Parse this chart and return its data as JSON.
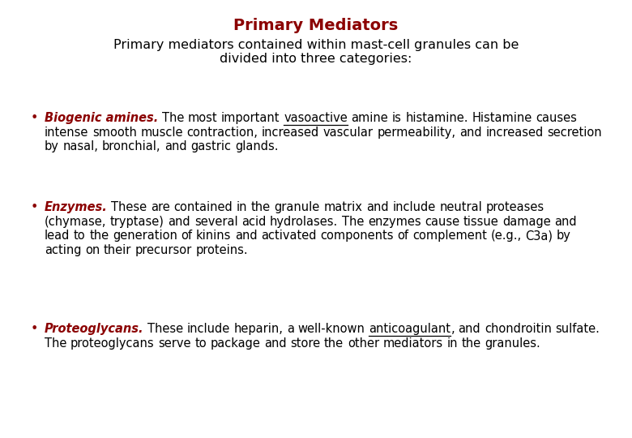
{
  "bg_color": "#ffffff",
  "title": "Primary Mediators",
  "title_color": "#8B0000",
  "title_fontsize": 14,
  "subtitle_line1": "Primary mediators contained within mast-cell granules can be",
  "subtitle_line2": "divided into three categories:",
  "subtitle_color": "#000000",
  "subtitle_fontsize": 11.5,
  "red_color": "#8B0000",
  "black_color": "#000000",
  "body_fontsize": 10.5,
  "figwidth": 7.8,
  "figheight": 5.4,
  "dpi": 100,
  "bullet1_label": "Biogenic amines.",
  "bullet1_pre_ul": " The most important ",
  "bullet1_ul": "vasoactive",
  "bullet1_post": " amine is histamine. Histamine causes intense smooth muscle contraction, increased vascular permeability, and increased secretion by nasal, bronchial, and gastric glands.",
  "bullet2_label": "Enzymes.",
  "bullet2_body": " These are contained in the granule matrix and include neutral proteases (chymase, tryptase) and several acid hydrolases. The enzymes cause tissue damage and lead to the generation of kinins and activated components of complement (e.g., C3a) by acting on their precursor proteins.",
  "bullet3_label": "Proteoglycans.",
  "bullet3_pre_ul": " These include heparin, a well-known ",
  "bullet3_ul": "anticoagulant",
  "bullet3_post": ", and chondroitin sulfate. The proteoglycans serve to package and store the other mediators in the granules."
}
